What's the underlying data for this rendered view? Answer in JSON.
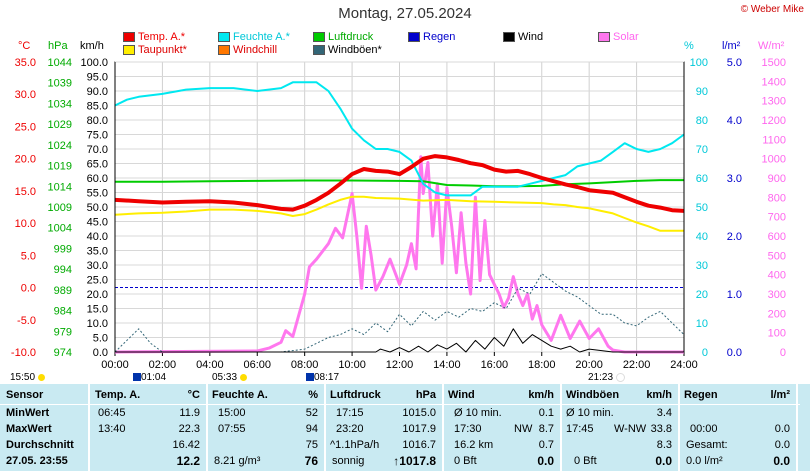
{
  "header": {
    "title": "Montag, 27.05.2024",
    "credit": "© Weber Mike"
  },
  "legend": [
    {
      "label": "Temp. A.*",
      "color": "#ee0000"
    },
    {
      "label": "Feuchte A.*",
      "color": "#00e8f0"
    },
    {
      "label": "Luftdruck",
      "color": "#00cc00"
    },
    {
      "label": "Regen",
      "color": "#0000cc"
    },
    {
      "label": "Wind",
      "color": "#000000"
    },
    {
      "label": "Solar",
      "color": "#ff77ee"
    },
    {
      "label": "Taupunkt*",
      "color": "#ffee00"
    },
    {
      "label": "Windchill",
      "color": "#ff7700"
    },
    {
      "label": "Windböen*",
      "color": "#336677"
    }
  ],
  "units": {
    "temp": "°C",
    "press": "hPa",
    "speed": "km/h",
    "hum": "%",
    "rain": "l/m²",
    "solar": "W/m²"
  },
  "chart_data": {
    "type": "line",
    "x_ticks": [
      "00:00",
      "02:00",
      "04:00",
      "06:00",
      "08:00",
      "10:00",
      "12:00",
      "14:00",
      "16:00",
      "18:00",
      "20:00",
      "22:00",
      "24:00"
    ],
    "axes": {
      "temp": {
        "ticks": [
          "35.0",
          "30.0",
          "25.0",
          "20.0",
          "15.0",
          "10.0",
          "5.0",
          "0.0",
          "-5.0",
          "-10.0"
        ],
        "range": [
          -10,
          35
        ]
      },
      "press": {
        "ticks": [
          "1044",
          "1039",
          "1034",
          "1029",
          "1024",
          "1019",
          "1014",
          "1009",
          "1004",
          "999",
          "994",
          "989",
          "984",
          "979",
          "974"
        ],
        "range": [
          974,
          1044
        ]
      },
      "speed": {
        "ticks": [
          "100.0",
          "95.0",
          "90.0",
          "85.0",
          "80.0",
          "75.0",
          "70.0",
          "65.0",
          "60.0",
          "55.0",
          "50.0",
          "45.0",
          "40.0",
          "35.0",
          "30.0",
          "25.0",
          "20.0",
          "15.0",
          "10.0",
          "5.0",
          "0.0"
        ],
        "range": [
          0,
          100
        ]
      },
      "hum": {
        "ticks": [
          "100",
          "90",
          "80",
          "70",
          "60",
          "50",
          "40",
          "30",
          "20",
          "10",
          "0"
        ],
        "range": [
          0,
          100
        ]
      },
      "rain": {
        "ticks": [
          "5.0",
          "4.0",
          "3.0",
          "2.0",
          "1.0",
          "0.0"
        ],
        "range": [
          0,
          5
        ]
      },
      "solar": {
        "ticks": [
          "1500",
          "1400",
          "1300",
          "1200",
          "1100",
          "1000",
          "900",
          "800",
          "700",
          "600",
          "500",
          "400",
          "300",
          "200",
          "100",
          "0"
        ],
        "range": [
          0,
          1500
        ]
      }
    },
    "series": [
      {
        "name": "Temp. A.*",
        "axis": "temp",
        "x": [
          0,
          1,
          2,
          3,
          4,
          5,
          6,
          7,
          7.5,
          8,
          8.5,
          9,
          9.5,
          10,
          10.5,
          11,
          11.5,
          12,
          12.5,
          13,
          13.5,
          14,
          14.5,
          15,
          15.5,
          16,
          16.5,
          17,
          17.5,
          18,
          18.5,
          19,
          19.5,
          20,
          20.5,
          21,
          21.5,
          22,
          22.5,
          23,
          23.5,
          24
        ],
        "y": [
          13.6,
          13.4,
          13.2,
          13.3,
          13.4,
          13.2,
          12.8,
          12.2,
          12.1,
          12.7,
          13.6,
          14.7,
          16.1,
          17.6,
          18.4,
          18.1,
          18.0,
          17.6,
          18.7,
          20.0,
          20.4,
          20.2,
          19.8,
          19.3,
          19.0,
          18.3,
          18.0,
          18.1,
          17.6,
          17.0,
          16.5,
          16.0,
          15.6,
          15.1,
          14.9,
          14.7,
          14.0,
          13.3,
          12.7,
          12.4,
          12.0,
          11.9
        ]
      },
      {
        "name": "Feuchte A.*",
        "axis": "hum",
        "x": [
          0,
          0.5,
          1,
          2,
          3,
          4,
          5,
          6,
          7,
          7.5,
          8,
          8.5,
          9,
          9.5,
          10,
          10.5,
          11,
          11.5,
          12,
          12.5,
          13,
          13.5,
          14,
          14.5,
          15,
          15.5,
          16,
          16.5,
          17,
          17.5,
          18,
          18.5,
          19,
          19.5,
          20,
          20.5,
          21,
          21.5,
          22,
          22.5,
          23,
          23.5,
          24
        ],
        "y": [
          85,
          87,
          88,
          89,
          90.5,
          91,
          91,
          90,
          91,
          93,
          93,
          93,
          90,
          84,
          77,
          73,
          70,
          70,
          69,
          66,
          58,
          55,
          54,
          54,
          54,
          57,
          57,
          57,
          57,
          58,
          59,
          60,
          61,
          64,
          65,
          66,
          69,
          72,
          70,
          69,
          70,
          72,
          75
        ]
      },
      {
        "name": "Luftdruck",
        "axis": "press",
        "x": [
          0,
          2,
          4,
          6,
          8,
          10,
          12,
          13,
          14,
          15,
          16,
          17,
          18,
          19,
          20,
          21,
          22,
          23,
          24
        ],
        "y": [
          1015.1,
          1015.1,
          1015.2,
          1015.3,
          1015.4,
          1015.4,
          1015.3,
          1015.2,
          1014.3,
          1014.2,
          1014.0,
          1014.0,
          1014.1,
          1014.5,
          1014.7,
          1015.0,
          1015.3,
          1015.5,
          1015.5
        ]
      },
      {
        "name": "Taupunkt*",
        "axis": "temp",
        "x": [
          0,
          1,
          2,
          3,
          4,
          5,
          6,
          7,
          7.5,
          8,
          8.5,
          9,
          9.5,
          10,
          10.5,
          11,
          12,
          13,
          14,
          15,
          16,
          17,
          18,
          18.5,
          19,
          19.5,
          20,
          20.5,
          21,
          21.5,
          22,
          22.5,
          23,
          23.5,
          24
        ],
        "y": [
          11.3,
          11.5,
          11.6,
          11.8,
          12.1,
          12.1,
          11.9,
          11.5,
          11.1,
          11.4,
          12.1,
          12.9,
          13.6,
          14.1,
          14.1,
          13.9,
          13.8,
          13.5,
          13.6,
          13.4,
          13.3,
          13.2,
          13.1,
          12.9,
          12.8,
          12.5,
          12.3,
          11.9,
          11.5,
          10.8,
          10.1,
          9.5,
          8.8,
          8.8,
          8.8
        ]
      },
      {
        "name": "Wind",
        "axis": "speed",
        "x": [
          0,
          0.5,
          1,
          2,
          3,
          4,
          5,
          6,
          7,
          8,
          9,
          10,
          11,
          11.2,
          11.6,
          12,
          12.4,
          12.8,
          13.2,
          13.6,
          14,
          14.4,
          14.8,
          15.2,
          15.6,
          16,
          16.4,
          16.8,
          17.2,
          17.6,
          18,
          18.4,
          18.8,
          19.2,
          19.6,
          20,
          21,
          22,
          24
        ],
        "y": [
          0,
          0,
          0,
          0,
          0,
          0,
          0,
          0,
          0,
          0,
          0,
          0,
          0,
          1,
          0,
          1.5,
          0,
          2,
          0,
          2.5,
          1,
          3,
          0,
          4,
          1,
          5,
          2,
          8,
          3,
          6,
          4,
          2,
          1,
          2,
          0,
          1,
          0,
          0,
          0
        ]
      },
      {
        "name": "Windböen*",
        "axis": "speed",
        "x": [
          0,
          0.5,
          1,
          1.5,
          2,
          3,
          4,
          5,
          6,
          7,
          8,
          9,
          9.5,
          10,
          10.5,
          11,
          11.5,
          12,
          12.5,
          13,
          13.5,
          14,
          14.5,
          15,
          15.5,
          16,
          16.5,
          17,
          17.5,
          18,
          18.5,
          19,
          19.5,
          20,
          20.5,
          21,
          21.5,
          22,
          22.5,
          23,
          23.5,
          24
        ],
        "y": [
          0,
          4,
          8,
          3,
          0,
          0,
          0,
          0,
          0,
          0,
          1,
          5,
          6,
          8,
          6,
          10,
          7,
          13,
          9,
          14,
          11,
          14,
          12,
          15,
          14,
          17,
          15,
          22,
          20,
          27,
          24,
          21,
          19,
          16,
          13,
          13,
          10,
          9,
          12,
          14,
          10,
          6
        ]
      },
      {
        "name": "Solar",
        "axis": "solar",
        "x": [
          0,
          6,
          6.5,
          7,
          7.2,
          7.5,
          8,
          8.2,
          8.5,
          9,
          9.3,
          9.6,
          10,
          10.2,
          10.4,
          10.6,
          10.8,
          11,
          11.3,
          11.6,
          12,
          12.3,
          12.5,
          12.7,
          12.9,
          13,
          13.2,
          13.4,
          13.6,
          13.8,
          14,
          14.2,
          14.4,
          14.6,
          14.8,
          15,
          15.2,
          15.4,
          15.6,
          15.8,
          16,
          16.2,
          16.4,
          16.6,
          16.8,
          17,
          17.2,
          17.4,
          17.6,
          17.8,
          18,
          18.4,
          18.8,
          19.2,
          19.6,
          20,
          20.4,
          20.8,
          21,
          21.5,
          24
        ],
        "y": [
          0,
          5,
          20,
          50,
          110,
          80,
          300,
          440,
          480,
          560,
          640,
          590,
          820,
          600,
          330,
          650,
          500,
          320,
          390,
          480,
          350,
          450,
          560,
          430,
          1010,
          820,
          980,
          600,
          870,
          460,
          850,
          650,
          410,
          720,
          460,
          300,
          800,
          370,
          680,
          400,
          350,
          300,
          230,
          280,
          390,
          300,
          240,
          300,
          170,
          240,
          140,
          60,
          190,
          70,
          160,
          70,
          120,
          30,
          10,
          0,
          0
        ]
      }
    ]
  },
  "markers": {
    "t1": "15:50",
    "t2": "01:04",
    "t3": "05:33",
    "t4": "08:17",
    "t5": "21:23"
  },
  "table": {
    "headers": {
      "sensor": "Sensor",
      "temp": "Temp. A.",
      "temp_unit": "°C",
      "hum": "Feuchte A.",
      "hum_unit": "%",
      "press": "Luftdruck",
      "press_unit": "hPa",
      "wind": "Wind",
      "wind_unit": "km/h",
      "gust": "Windböen",
      "gust_unit": "km/h",
      "rain": "Regen",
      "rain_unit": "l/m²"
    },
    "rows": [
      {
        "label": "MinWert",
        "temp_t": "06:45",
        "temp_v": "11.9",
        "hum_t": "15:00",
        "hum_v": "52",
        "press_t": "17:15",
        "press_v": "1015.0",
        "wind_t": "Ø 10 min.",
        "wind_v": "0.1",
        "gust_t": "Ø 10 min.",
        "gust_v": "3.4",
        "rain_t": "",
        "rain_v": ""
      },
      {
        "label": "MaxWert",
        "temp_t": "13:40",
        "temp_v": "22.3",
        "hum_t": "07:55",
        "hum_v": "94",
        "press_t": "23:20",
        "press_v": "1017.9",
        "wind_t": "17:30",
        "wind_dir": "NW",
        "wind_v": "8.7",
        "gust_t": "17:45",
        "gust_dir": "W-NW",
        "gust_v": "33.8",
        "rain_t": "00:00",
        "rain_v": "0.0"
      },
      {
        "label": "Durchschnitt",
        "temp_t": "",
        "temp_v": "16.42",
        "hum_t": "",
        "hum_v": "75",
        "press_t": "^1.1hPa/h",
        "press_v": "1016.7",
        "wind_t": "16.2 km",
        "wind_v": "0.7",
        "gust_t": "",
        "gust_v": "8.3",
        "rain_t": "Gesamt:",
        "rain_v": "0.0"
      },
      {
        "label": "27.05. 23:55",
        "temp_t": "",
        "temp_v": "12.2",
        "hum_t": "8.21 g/m³",
        "hum_v": "76",
        "press_t": "sonnig",
        "press_v": "↑1017.8",
        "wind_t": "0 Bft",
        "wind_v": "0.0",
        "gust_t": "0 Bft",
        "gust_v": "0.0",
        "rain_t": "0.0 l/m²",
        "rain_v": "0.0"
      }
    ]
  }
}
